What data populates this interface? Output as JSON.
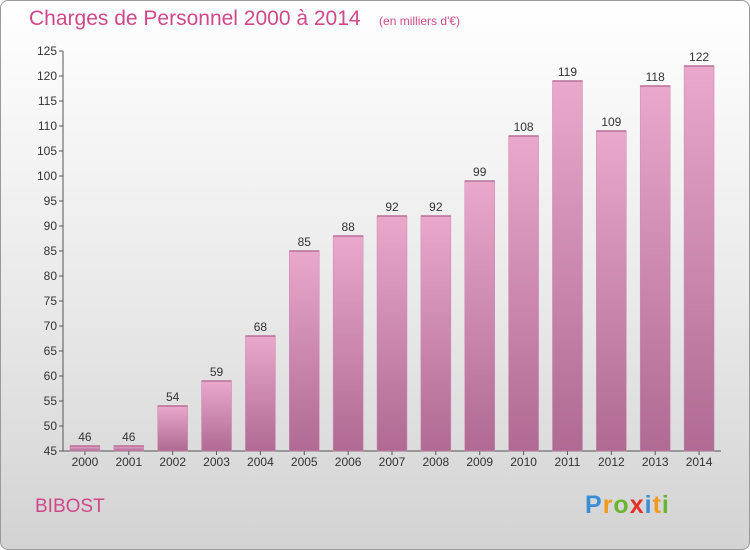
{
  "chart_data": {
    "type": "bar",
    "title": "Charges de Personnel 2000 à 2014",
    "subtitle": "(en milliers d'€)",
    "categories": [
      "2000",
      "2001",
      "2002",
      "2003",
      "2004",
      "2005",
      "2006",
      "2007",
      "2008",
      "2009",
      "2010",
      "2011",
      "2012",
      "2013",
      "2014"
    ],
    "values": [
      46,
      46,
      54,
      59,
      68,
      85,
      88,
      92,
      92,
      99,
      108,
      119,
      109,
      118,
      122
    ],
    "ylim": [
      45,
      125
    ],
    "yticks": [
      45,
      50,
      55,
      60,
      65,
      70,
      75,
      80,
      85,
      90,
      95,
      100,
      105,
      110,
      115,
      120,
      125
    ],
    "grid": false,
    "legend": "none"
  },
  "commune": "BIBOST",
  "brand": {
    "letters": [
      "P",
      "r",
      "o",
      "x",
      "i",
      "t",
      "i"
    ],
    "colors": [
      "#3a8ed6",
      "#f29a1d",
      "#6bb531",
      "#e5302a",
      "#3a8ed6",
      "#f29a1d",
      "#6bb531"
    ]
  },
  "colors": {
    "bar_top": "#e9a8cc",
    "bar_bottom": "#b06a93",
    "title": "#d0488a",
    "axis": "#555555"
  }
}
